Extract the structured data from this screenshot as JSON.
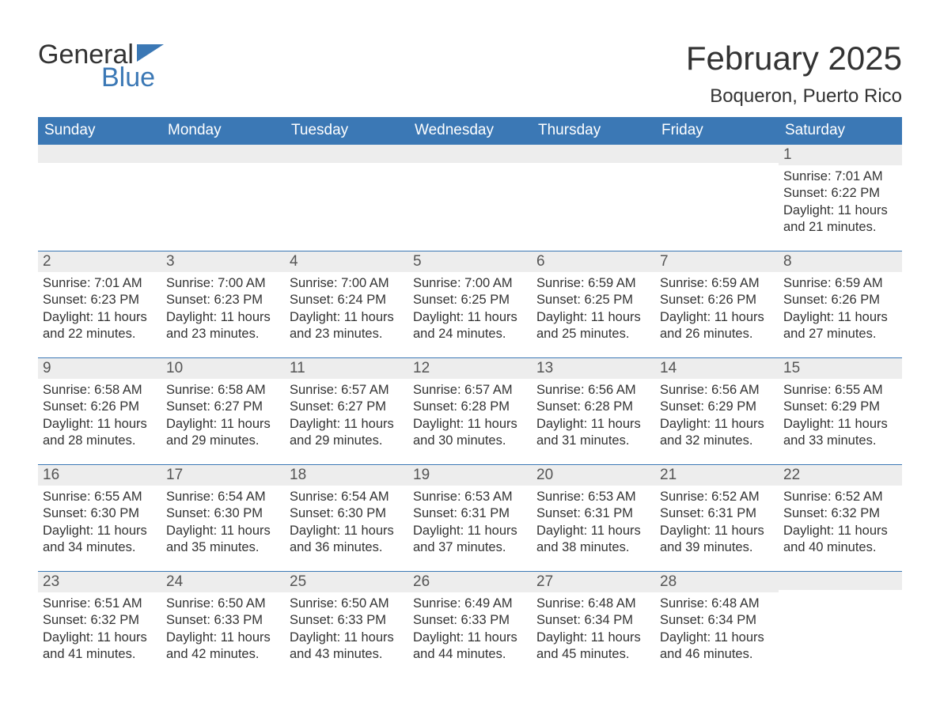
{
  "brand": {
    "word1": "General",
    "word2": "Blue"
  },
  "colors": {
    "accent": "#3b78b5",
    "header_bg": "#3b78b5",
    "header_text": "#ffffff",
    "daybar_bg": "#ededed",
    "daybar_border": "#3b78b5",
    "text": "#333333",
    "background": "#ffffff"
  },
  "title": {
    "month": "February 2025",
    "location": "Boqueron, Puerto Rico"
  },
  "weekdays": [
    "Sunday",
    "Monday",
    "Tuesday",
    "Wednesday",
    "Thursday",
    "Friday",
    "Saturday"
  ],
  "labels": {
    "sunrise": "Sunrise:",
    "sunset": "Sunset:",
    "daylight": "Daylight:",
    "hours": "hours",
    "and": "and",
    "minutes": "minutes."
  },
  "weeks": [
    [
      {
        "day": ""
      },
      {
        "day": ""
      },
      {
        "day": ""
      },
      {
        "day": ""
      },
      {
        "day": ""
      },
      {
        "day": ""
      },
      {
        "day": "1",
        "sunrise": "7:01 AM",
        "sunset": "6:22 PM",
        "dl_h": "11",
        "dl_m": "21"
      }
    ],
    [
      {
        "day": "2",
        "sunrise": "7:01 AM",
        "sunset": "6:23 PM",
        "dl_h": "11",
        "dl_m": "22"
      },
      {
        "day": "3",
        "sunrise": "7:00 AM",
        "sunset": "6:23 PM",
        "dl_h": "11",
        "dl_m": "23"
      },
      {
        "day": "4",
        "sunrise": "7:00 AM",
        "sunset": "6:24 PM",
        "dl_h": "11",
        "dl_m": "23"
      },
      {
        "day": "5",
        "sunrise": "7:00 AM",
        "sunset": "6:25 PM",
        "dl_h": "11",
        "dl_m": "24"
      },
      {
        "day": "6",
        "sunrise": "6:59 AM",
        "sunset": "6:25 PM",
        "dl_h": "11",
        "dl_m": "25"
      },
      {
        "day": "7",
        "sunrise": "6:59 AM",
        "sunset": "6:26 PM",
        "dl_h": "11",
        "dl_m": "26"
      },
      {
        "day": "8",
        "sunrise": "6:59 AM",
        "sunset": "6:26 PM",
        "dl_h": "11",
        "dl_m": "27"
      }
    ],
    [
      {
        "day": "9",
        "sunrise": "6:58 AM",
        "sunset": "6:26 PM",
        "dl_h": "11",
        "dl_m": "28"
      },
      {
        "day": "10",
        "sunrise": "6:58 AM",
        "sunset": "6:27 PM",
        "dl_h": "11",
        "dl_m": "29"
      },
      {
        "day": "11",
        "sunrise": "6:57 AM",
        "sunset": "6:27 PM",
        "dl_h": "11",
        "dl_m": "29"
      },
      {
        "day": "12",
        "sunrise": "6:57 AM",
        "sunset": "6:28 PM",
        "dl_h": "11",
        "dl_m": "30"
      },
      {
        "day": "13",
        "sunrise": "6:56 AM",
        "sunset": "6:28 PM",
        "dl_h": "11",
        "dl_m": "31"
      },
      {
        "day": "14",
        "sunrise": "6:56 AM",
        "sunset": "6:29 PM",
        "dl_h": "11",
        "dl_m": "32"
      },
      {
        "day": "15",
        "sunrise": "6:55 AM",
        "sunset": "6:29 PM",
        "dl_h": "11",
        "dl_m": "33"
      }
    ],
    [
      {
        "day": "16",
        "sunrise": "6:55 AM",
        "sunset": "6:30 PM",
        "dl_h": "11",
        "dl_m": "34"
      },
      {
        "day": "17",
        "sunrise": "6:54 AM",
        "sunset": "6:30 PM",
        "dl_h": "11",
        "dl_m": "35"
      },
      {
        "day": "18",
        "sunrise": "6:54 AM",
        "sunset": "6:30 PM",
        "dl_h": "11",
        "dl_m": "36"
      },
      {
        "day": "19",
        "sunrise": "6:53 AM",
        "sunset": "6:31 PM",
        "dl_h": "11",
        "dl_m": "37"
      },
      {
        "day": "20",
        "sunrise": "6:53 AM",
        "sunset": "6:31 PM",
        "dl_h": "11",
        "dl_m": "38"
      },
      {
        "day": "21",
        "sunrise": "6:52 AM",
        "sunset": "6:31 PM",
        "dl_h": "11",
        "dl_m": "39"
      },
      {
        "day": "22",
        "sunrise": "6:52 AM",
        "sunset": "6:32 PM",
        "dl_h": "11",
        "dl_m": "40"
      }
    ],
    [
      {
        "day": "23",
        "sunrise": "6:51 AM",
        "sunset": "6:32 PM",
        "dl_h": "11",
        "dl_m": "41"
      },
      {
        "day": "24",
        "sunrise": "6:50 AM",
        "sunset": "6:33 PM",
        "dl_h": "11",
        "dl_m": "42"
      },
      {
        "day": "25",
        "sunrise": "6:50 AM",
        "sunset": "6:33 PM",
        "dl_h": "11",
        "dl_m": "43"
      },
      {
        "day": "26",
        "sunrise": "6:49 AM",
        "sunset": "6:33 PM",
        "dl_h": "11",
        "dl_m": "44"
      },
      {
        "day": "27",
        "sunrise": "6:48 AM",
        "sunset": "6:34 PM",
        "dl_h": "11",
        "dl_m": "45"
      },
      {
        "day": "28",
        "sunrise": "6:48 AM",
        "sunset": "6:34 PM",
        "dl_h": "11",
        "dl_m": "46"
      },
      {
        "day": ""
      }
    ]
  ]
}
